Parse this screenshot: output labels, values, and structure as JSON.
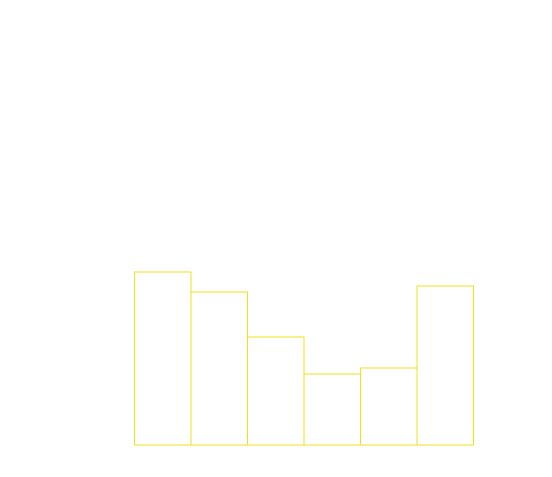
{
  "chart_data": {
    "type": "bar",
    "categories": [
      "",
      "",
      "",
      "",
      "",
      ""
    ],
    "values": [
      173,
      153,
      108,
      71,
      77,
      159
    ],
    "ylim": [
      0,
      445
    ],
    "grid": false,
    "legend": "none",
    "bar_fill": "none",
    "bar_stroke": "#f2e21a",
    "background": "#ffffff"
  }
}
